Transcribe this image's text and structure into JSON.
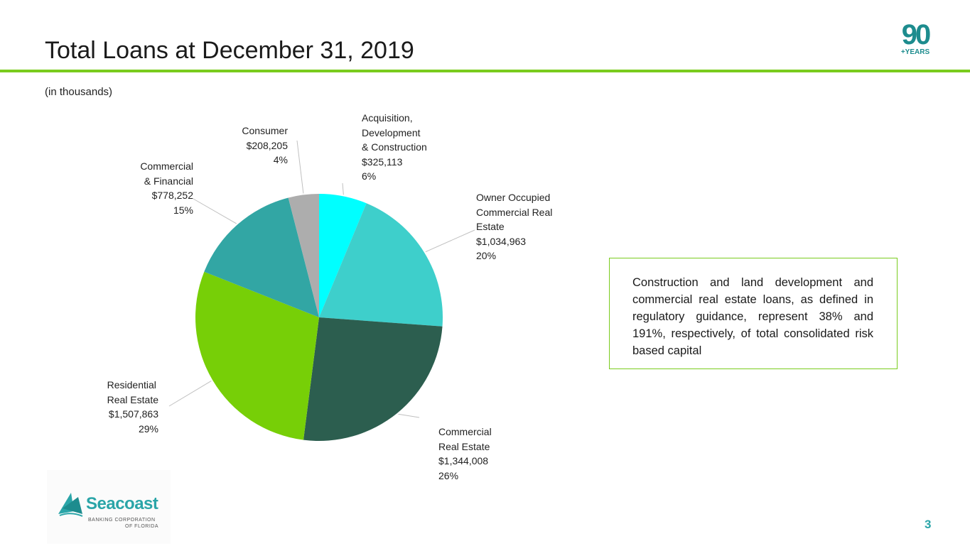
{
  "slide": {
    "title": "Total Loans at December 31, 2019",
    "subtitle": "(in thousands)",
    "page_number": "3"
  },
  "badge": {
    "number": "90",
    "label": "+YEARS"
  },
  "logo": {
    "name": "Seacoast",
    "line1": "BANKING CORPORATION",
    "line2": "OF FLORIDA"
  },
  "callout": {
    "text": "Construction and land development and commercial real estate loans, as defined in regulatory guidance, represent 38% and 191%, respectively, of total consolidated risk based capital"
  },
  "colors": {
    "accent_green": "#7acc1e",
    "title_rule": "#7acc1e",
    "teal": "#2aa5a8",
    "dark_teal": "#1d8c8e",
    "leader_line": "#c0c0c0"
  },
  "chart_data": {
    "type": "pie",
    "units": "thousands",
    "start_angle_deg": 0,
    "direction": "clockwise",
    "slices": [
      {
        "name": "Acquisition, Development & Construction",
        "label_lines": [
          "Acquisition,",
          "Development",
          "& Construction"
        ],
        "value_text": "$325,113",
        "pct_text": "6%",
        "value": 325113,
        "pct": 6,
        "color": "#00ffff"
      },
      {
        "name": "Owner Occupied Commercial Real Estate",
        "label_lines": [
          "Owner Occupied",
          "Commercial Real",
          "Estate"
        ],
        "value_text": "$1,034,963",
        "pct_text": "20%",
        "value": 1034963,
        "pct": 20,
        "color": "#3ecfcb"
      },
      {
        "name": "Commercial Real Estate",
        "label_lines": [
          "Commercial",
          "Real Estate"
        ],
        "value_text": "$1,344,008",
        "pct_text": "26%",
        "value": 1344008,
        "pct": 26,
        "color": "#2c5e4f"
      },
      {
        "name": "Residential Real Estate",
        "label_lines": [
          "Residential",
          "Real Estate"
        ],
        "value_text": "$1,507,863",
        "pct_text": "29%",
        "value": 1507863,
        "pct": 29,
        "color": "#77cf07"
      },
      {
        "name": "Commercial & Financial",
        "label_lines": [
          "Commercial",
          "& Financial"
        ],
        "value_text": "$778,252",
        "pct_text": "15%",
        "value": 778252,
        "pct": 15,
        "color": "#32a6a4"
      },
      {
        "name": "Consumer",
        "label_lines": [
          "Consumer"
        ],
        "value_text": "$208,205",
        "pct_text": "4%",
        "value": 208205,
        "pct": 4,
        "color": "#adadad"
      }
    ]
  }
}
